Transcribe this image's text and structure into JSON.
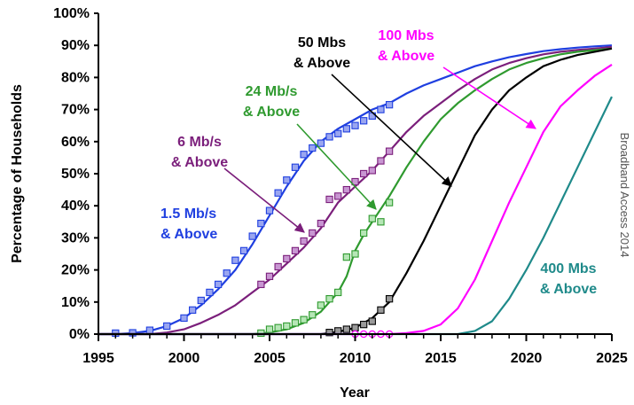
{
  "chart_data": {
    "type": "line",
    "xlabel": "Year",
    "ylabel": "Percentage of Households",
    "xlim": [
      1995,
      2025
    ],
    "ylim": [
      0,
      100
    ],
    "x_ticks": [
      1995,
      2000,
      2005,
      2010,
      2015,
      2020,
      2025
    ],
    "y_ticks": [
      0,
      10,
      20,
      30,
      40,
      50,
      60,
      70,
      80,
      90,
      100
    ],
    "y_tick_labels": [
      "0%",
      "10%",
      "20%",
      "30%",
      "40%",
      "50%",
      "60%",
      "70%",
      "80%",
      "90%",
      "100%"
    ],
    "x_tick_labels": [
      "1995",
      "2000",
      "2005",
      "2010",
      "2015",
      "2020",
      "2025"
    ],
    "grid": false,
    "credit": "Broadband Access 2014",
    "series": [
      {
        "color": "#1f3fe0",
        "curve": [
          [
            1995,
            0
          ],
          [
            1996,
            0
          ],
          [
            1997,
            0.3
          ],
          [
            1998,
            1
          ],
          [
            1999,
            2.5
          ],
          [
            2000,
            5
          ],
          [
            2001,
            9
          ],
          [
            2002,
            14
          ],
          [
            2003,
            20
          ],
          [
            2004,
            28
          ],
          [
            2005,
            37
          ],
          [
            2006,
            46
          ],
          [
            2007,
            54
          ],
          [
            2008,
            60
          ],
          [
            2009,
            64
          ],
          [
            2010,
            67
          ],
          [
            2011,
            70
          ],
          [
            2012,
            72
          ],
          [
            2013,
            75
          ],
          [
            2014,
            77.5
          ],
          [
            2015,
            79.5
          ],
          [
            2016,
            81.5
          ],
          [
            2017,
            83.5
          ],
          [
            2018,
            85
          ],
          [
            2019,
            86.3
          ],
          [
            2020,
            87.3
          ],
          [
            2021,
            88.2
          ],
          [
            2022,
            88.8
          ],
          [
            2023,
            89.3
          ],
          [
            2024,
            89.7
          ],
          [
            2025,
            90
          ]
        ],
        "markers": [
          [
            1996,
            0.3
          ],
          [
            1997,
            0.4
          ],
          [
            1998,
            1.2
          ],
          [
            1999,
            2.5
          ],
          [
            2000,
            5
          ],
          [
            2000.5,
            7.5
          ],
          [
            2001,
            10.5
          ],
          [
            2001.5,
            13
          ],
          [
            2002,
            15.5
          ],
          [
            2002.5,
            19
          ],
          [
            2003,
            23
          ],
          [
            2003.5,
            26
          ],
          [
            2004,
            30.5
          ],
          [
            2004.5,
            34.5
          ],
          [
            2005,
            38.5
          ],
          [
            2005.5,
            44
          ],
          [
            2006,
            48
          ],
          [
            2006.5,
            52
          ],
          [
            2007,
            56
          ],
          [
            2007.5,
            58
          ],
          [
            2008,
            59.5
          ],
          [
            2008.5,
            61.5
          ],
          [
            2009,
            62.5
          ],
          [
            2009.5,
            64
          ],
          [
            2010,
            65
          ],
          [
            2010.5,
            66.5
          ],
          [
            2011,
            68
          ],
          [
            2011.5,
            70
          ],
          [
            2012,
            71.5
          ]
        ],
        "marker_fill": "#9aa6f0",
        "marker_shape": "square"
      },
      {
        "color": "#7b1f7b",
        "curve": [
          [
            1995,
            0
          ],
          [
            1998,
            0
          ],
          [
            1999,
            0.5
          ],
          [
            2000,
            1.5
          ],
          [
            2001,
            3.5
          ],
          [
            2002,
            6
          ],
          [
            2003,
            9
          ],
          [
            2004,
            13
          ],
          [
            2005,
            17
          ],
          [
            2006,
            22
          ],
          [
            2007,
            27
          ],
          [
            2008,
            33
          ],
          [
            2009,
            41
          ],
          [
            2010,
            46
          ],
          [
            2011,
            51
          ],
          [
            2012,
            57
          ],
          [
            2013,
            63
          ],
          [
            2014,
            68
          ],
          [
            2015,
            72
          ],
          [
            2016,
            76
          ],
          [
            2017,
            79.5
          ],
          [
            2018,
            82.5
          ],
          [
            2019,
            84.5
          ],
          [
            2020,
            86
          ],
          [
            2021,
            87.2
          ],
          [
            2022,
            88
          ],
          [
            2023,
            88.6
          ],
          [
            2024,
            89
          ],
          [
            2025,
            89.5
          ]
        ],
        "markers": [
          [
            2004.5,
            15.5
          ],
          [
            2005,
            18
          ],
          [
            2005.5,
            21
          ],
          [
            2006,
            23.5
          ],
          [
            2006.5,
            26
          ],
          [
            2007,
            29
          ],
          [
            2007.5,
            31.5
          ],
          [
            2008,
            34.5
          ],
          [
            2008.5,
            42
          ],
          [
            2009,
            43
          ],
          [
            2009.5,
            45
          ],
          [
            2010,
            47.5
          ],
          [
            2010.5,
            50
          ],
          [
            2011,
            51
          ],
          [
            2011.5,
            54
          ],
          [
            2012,
            57
          ]
        ],
        "marker_fill": "#c896d2",
        "marker_shape": "square"
      },
      {
        "color": "#2f9a2f",
        "curve": [
          [
            1995,
            0
          ],
          [
            2004,
            0
          ],
          [
            2005,
            0.5
          ],
          [
            2006,
            1.5
          ],
          [
            2007,
            3.5
          ],
          [
            2008,
            7
          ],
          [
            2009,
            13
          ],
          [
            2009.5,
            18
          ],
          [
            2010,
            26
          ],
          [
            2010.5,
            31
          ],
          [
            2011,
            35
          ],
          [
            2012,
            43
          ],
          [
            2013,
            52
          ],
          [
            2014,
            60
          ],
          [
            2015,
            67
          ],
          [
            2016,
            72
          ],
          [
            2017,
            76
          ],
          [
            2018,
            79.5
          ],
          [
            2019,
            82.5
          ],
          [
            2020,
            84.5
          ],
          [
            2021,
            86
          ],
          [
            2022,
            87.2
          ],
          [
            2023,
            88
          ],
          [
            2024,
            88.5
          ],
          [
            2025,
            89
          ]
        ],
        "markers": [
          [
            2004.5,
            0.3
          ],
          [
            2005,
            1.5
          ],
          [
            2005.5,
            2
          ],
          [
            2006,
            2.5
          ],
          [
            2006.5,
            3.5
          ],
          [
            2007,
            4.5
          ],
          [
            2007.5,
            6
          ],
          [
            2008,
            9
          ],
          [
            2008.5,
            11
          ],
          [
            2009,
            13
          ],
          [
            2009.5,
            24
          ],
          [
            2010,
            25
          ],
          [
            2010.5,
            31.5
          ],
          [
            2011,
            36
          ],
          [
            2011.5,
            35
          ],
          [
            2012,
            41
          ]
        ],
        "marker_fill": "#b6e6b6",
        "marker_shape": "square"
      },
      {
        "color": "#000000",
        "curve": [
          [
            1995,
            0
          ],
          [
            2008,
            0
          ],
          [
            2009,
            0.7
          ],
          [
            2010,
            2
          ],
          [
            2011,
            5
          ],
          [
            2012,
            10
          ],
          [
            2013,
            19
          ],
          [
            2014,
            29
          ],
          [
            2015,
            40
          ],
          [
            2016,
            51
          ],
          [
            2017,
            62
          ],
          [
            2018,
            70
          ],
          [
            2019,
            76
          ],
          [
            2020,
            80
          ],
          [
            2021,
            83.5
          ],
          [
            2022,
            85.5
          ],
          [
            2023,
            87
          ],
          [
            2024,
            88
          ],
          [
            2025,
            89
          ]
        ],
        "markers": [
          [
            2008.5,
            0.5
          ],
          [
            2009,
            1
          ],
          [
            2009.5,
            1.5
          ],
          [
            2010,
            2
          ],
          [
            2010.5,
            3
          ],
          [
            2011,
            4
          ],
          [
            2011.5,
            7.5
          ],
          [
            2012,
            11
          ]
        ],
        "marker_fill": "#9a9a9a",
        "marker_shape": "square"
      },
      {
        "color": "#ff00ff",
        "curve": [
          [
            1995,
            0
          ],
          [
            2012,
            0
          ],
          [
            2013,
            0.3
          ],
          [
            2014,
            1
          ],
          [
            2015,
            3
          ],
          [
            2016,
            8
          ],
          [
            2017,
            17
          ],
          [
            2018,
            29
          ],
          [
            2019,
            41
          ],
          [
            2020,
            52
          ],
          [
            2021,
            63
          ],
          [
            2022,
            71
          ],
          [
            2023,
            76
          ],
          [
            2024,
            80.5
          ],
          [
            2025,
            84
          ]
        ],
        "markers": [
          [
            2010,
            0
          ],
          [
            2010.5,
            0
          ],
          [
            2011,
            0
          ],
          [
            2011.5,
            0
          ],
          [
            2012,
            0
          ]
        ],
        "marker_fill": "#ffffff",
        "marker_shape": "circle"
      },
      {
        "color": "#1f8a8a",
        "curve": [
          [
            1995,
            0
          ],
          [
            2016,
            0
          ],
          [
            2017,
            1
          ],
          [
            2018,
            4
          ],
          [
            2019,
            11
          ],
          [
            2020,
            20
          ],
          [
            2021,
            30
          ],
          [
            2022,
            41
          ],
          [
            2023,
            52
          ],
          [
            2024,
            63
          ],
          [
            2025,
            74
          ]
        ],
        "markers": [],
        "marker_fill": "",
        "marker_shape": "none"
      }
    ],
    "annotations": [
      {
        "lines": [
          "1.5 Mb/s",
          "& Above"
        ],
        "color": "#1f3fe0"
      },
      {
        "lines": [
          "6 Mb/s",
          "& Above"
        ],
        "color": "#7b1f7b"
      },
      {
        "lines": [
          "24 Mb/s",
          "& Above"
        ],
        "color": "#2f9a2f"
      },
      {
        "lines": [
          "50 Mbs",
          "& Above"
        ],
        "color": "#000000"
      },
      {
        "lines": [
          "100 Mbs",
          "& Above"
        ],
        "color": "#ff00ff"
      },
      {
        "lines": [
          "400 Mbs",
          "& Above"
        ],
        "color": "#1f8a8a"
      }
    ]
  }
}
